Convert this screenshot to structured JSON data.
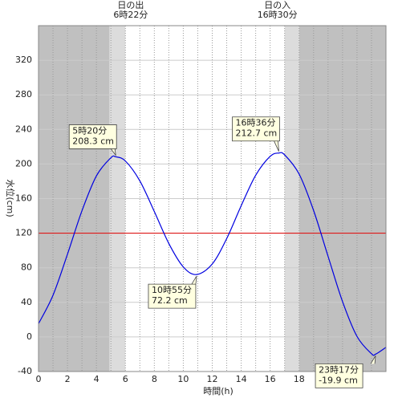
{
  "chart_data": {
    "type": "line",
    "x_label": "時間(h)",
    "y_label": "水位(cm)",
    "xlim": [
      0,
      24
    ],
    "xticks": [
      0,
      2,
      4,
      6,
      8,
      10,
      12,
      14,
      16,
      18,
      20,
      22
    ],
    "xminorticks": [
      1,
      3,
      5,
      7,
      9,
      11,
      13,
      15,
      17,
      19,
      21,
      23
    ],
    "ylim": [
      -40,
      360
    ],
    "yticks": [
      -40,
      0,
      40,
      80,
      120,
      160,
      200,
      240,
      280,
      320
    ],
    "grid": true,
    "night": [
      [
        0,
        4.9
      ],
      [
        18,
        24
      ]
    ],
    "twilight": [
      [
        4.9,
        6.0
      ],
      [
        17.0,
        18.0
      ]
    ],
    "night_color": "#c0c0c0",
    "twilight_color": "#dcdcdc",
    "reference_line": {
      "value": 120,
      "color": "#e00000"
    },
    "sun": [
      {
        "x": 6.367,
        "labels": [
          "日の出",
          "6時22分"
        ]
      },
      {
        "x": 16.5,
        "labels": [
          "日の入",
          "16時30分"
        ]
      }
    ],
    "series": [
      {
        "name": "水位",
        "color": "#0000e0",
        "x": [
          0,
          1,
          2,
          3,
          4,
          5,
          5.333,
          6,
          7,
          8,
          9,
          10,
          10.917,
          12,
          13,
          14,
          15,
          16,
          16.6,
          17,
          18,
          19,
          20,
          21,
          22,
          23,
          23.283,
          24
        ],
        "values": [
          15.3,
          48.2,
          95.7,
          145.9,
          186.3,
          207.2,
          208.3,
          203.5,
          180.5,
          145.0,
          108.1,
          81.0,
          72.2,
          84.4,
          113.8,
          151.8,
          187.0,
          208.9,
          212.7,
          210.6,
          188.4,
          146.3,
          93.3,
          40.9,
          0.6,
          -19.4,
          -19.9,
          -12
        ]
      }
    ],
    "extremes": [
      {
        "x": 5.333,
        "value": 208.3,
        "labels": [
          "5時20分",
          "208.3 cm"
        ]
      },
      {
        "x": 10.917,
        "value": 72.2,
        "labels": [
          "10時55分",
          "72.2 cm"
        ]
      },
      {
        "x": 16.6,
        "value": 212.7,
        "labels": [
          "16時36分",
          "212.7 cm"
        ]
      },
      {
        "x": 23.283,
        "value": -19.9,
        "labels": [
          "23時17分",
          "-19.9 cm"
        ]
      }
    ]
  }
}
